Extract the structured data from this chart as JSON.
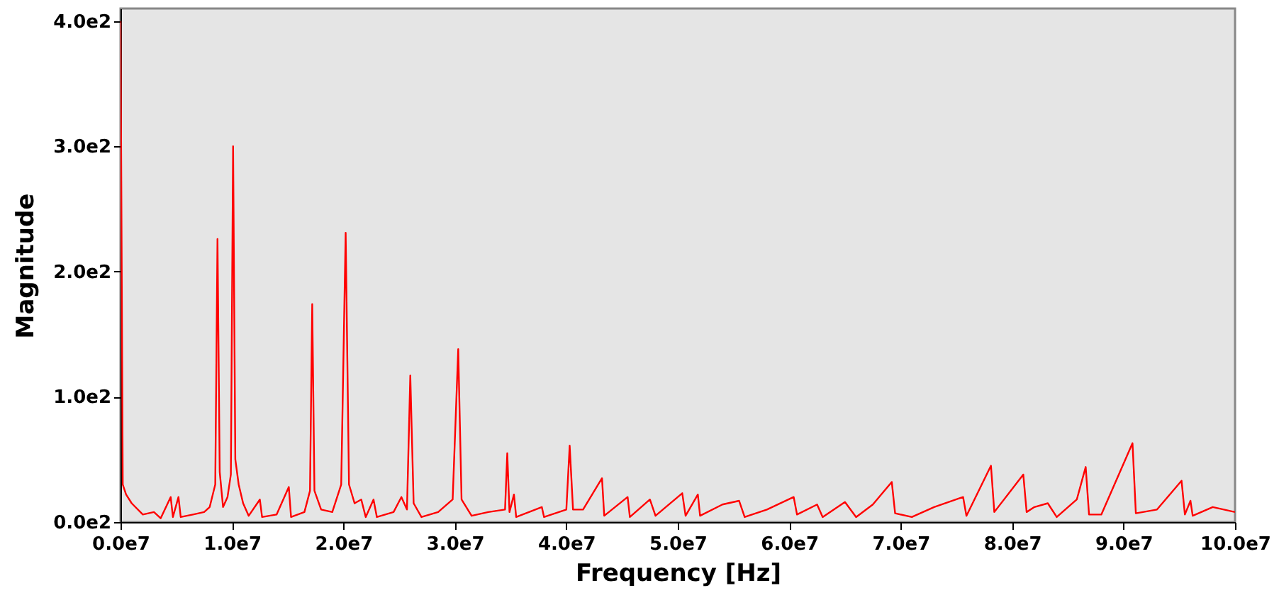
{
  "chart_data": {
    "type": "line",
    "xlabel": "Frequency [Hz]",
    "ylabel": "Magnitude",
    "grid": false,
    "marker": "none",
    "line_style": "solid",
    "xlim": [
      0,
      100000000
    ],
    "ylim": [
      0,
      410
    ],
    "xticks": [
      {
        "value": 0,
        "label": "0.0e7"
      },
      {
        "value": 10000000,
        "label": "1.0e7"
      },
      {
        "value": 20000000,
        "label": "2.0e7"
      },
      {
        "value": 30000000,
        "label": "3.0e7"
      },
      {
        "value": 40000000,
        "label": "4.0e7"
      },
      {
        "value": 50000000,
        "label": "5.0e7"
      },
      {
        "value": 60000000,
        "label": "6.0e7"
      },
      {
        "value": 70000000,
        "label": "7.0e7"
      },
      {
        "value": 80000000,
        "label": "8.0e7"
      },
      {
        "value": 90000000,
        "label": "9.0e7"
      },
      {
        "value": 100000000,
        "label": "10.0e7"
      }
    ],
    "yticks": [
      {
        "value": 0,
        "label": "0.0e2"
      },
      {
        "value": 100,
        "label": "1.0e2"
      },
      {
        "value": 200,
        "label": "2.0e2"
      },
      {
        "value": 300,
        "label": "3.0e2"
      },
      {
        "value": 400,
        "label": "4.0e2"
      }
    ],
    "x": [
      0,
      200000,
      500000,
      1000000,
      2000000,
      3000000,
      3600000,
      4500000,
      4700000,
      5200000,
      5400000,
      6500000,
      7500000,
      8000000,
      8500000,
      8700000,
      8900000,
      9200000,
      9600000,
      9900000,
      10100000,
      10300000,
      10600000,
      11000000,
      11500000,
      12500000,
      12700000,
      14000000,
      15100000,
      15300000,
      16500000,
      17000000,
      17200000,
      17400000,
      18000000,
      19000000,
      19800000,
      20200000,
      20500000,
      21000000,
      21600000,
      22000000,
      22700000,
      23000000,
      24500000,
      25200000,
      25700000,
      26000000,
      26300000,
      27000000,
      28500000,
      29800000,
      30300000,
      30600000,
      31500000,
      33000000,
      34500000,
      34700000,
      34900000,
      35300000,
      35500000,
      37800000,
      38000000,
      40000000,
      40300000,
      40600000,
      41500000,
      43200000,
      43400000,
      45500000,
      45700000,
      47500000,
      48000000,
      50400000,
      50700000,
      51800000,
      52000000,
      54000000,
      55500000,
      56000000,
      58000000,
      60400000,
      60700000,
      62500000,
      63000000,
      65000000,
      66000000,
      67500000,
      69200000,
      69500000,
      71000000,
      73000000,
      75600000,
      75900000,
      78100000,
      78400000,
      81000000,
      81300000,
      82000000,
      83200000,
      84000000,
      85800000,
      86600000,
      86900000,
      88000000,
      90800000,
      91100000,
      93000000,
      95200000,
      95500000,
      96000000,
      96200000,
      98000000,
      99000000,
      100000000
    ],
    "series": [
      {
        "color": "#ff0000",
        "values": [
          400,
          30,
          22,
          15,
          6,
          8,
          3,
          20,
          4,
          20,
          4,
          6,
          8,
          12,
          30,
          226,
          40,
          12,
          20,
          38,
          300,
          50,
          30,
          15,
          5,
          18,
          4,
          6,
          28,
          4,
          8,
          25,
          174,
          25,
          10,
          8,
          30,
          231,
          30,
          15,
          18,
          4,
          18,
          4,
          8,
          20,
          10,
          117,
          15,
          4,
          8,
          18,
          138,
          18,
          5,
          8,
          10,
          55,
          8,
          22,
          4,
          12,
          4,
          10,
          61,
          10,
          10,
          35,
          5,
          20,
          4,
          18,
          5,
          23,
          5,
          22,
          5,
          14,
          17,
          4,
          10,
          20,
          6,
          14,
          4,
          16,
          4,
          14,
          32,
          7,
          4,
          12,
          20,
          5,
          45,
          8,
          38,
          8,
          12,
          15,
          4,
          18,
          44,
          6,
          6,
          63,
          7,
          10,
          33,
          6,
          17,
          5,
          12,
          10,
          8
        ]
      }
    ]
  }
}
